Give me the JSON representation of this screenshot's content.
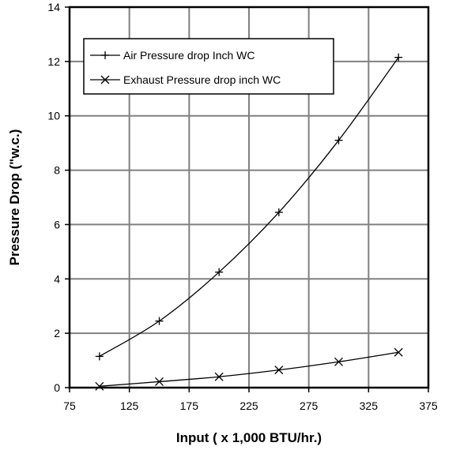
{
  "chart_data": {
    "type": "line",
    "xlabel": "Input ( x 1,000 BTU/hr.)",
    "ylabel": "Pressure Drop (\"w.c.)",
    "xlim": [
      75,
      375
    ],
    "ylim": [
      0,
      14
    ],
    "x_ticks": [
      "75",
      "125",
      "175",
      "225",
      "275",
      "325",
      "375"
    ],
    "y_ticks": [
      "0",
      "2",
      "4",
      "6",
      "8",
      "10",
      "12",
      "14"
    ],
    "grid": true,
    "legend_position": "top-left",
    "series": [
      {
        "name": "Air Pressure drop Inch WC",
        "marker": "plus",
        "color": "#000000",
        "x": [
          100,
          150,
          200,
          250,
          300,
          350
        ],
        "y": [
          1.15,
          2.45,
          4.25,
          6.45,
          9.1,
          12.15
        ]
      },
      {
        "name": "Exhaust Pressure drop inch WC",
        "marker": "cross",
        "color": "#000000",
        "x": [
          100,
          150,
          200,
          250,
          300,
          350
        ],
        "y": [
          0.05,
          0.22,
          0.4,
          0.65,
          0.95,
          1.3
        ]
      }
    ]
  }
}
